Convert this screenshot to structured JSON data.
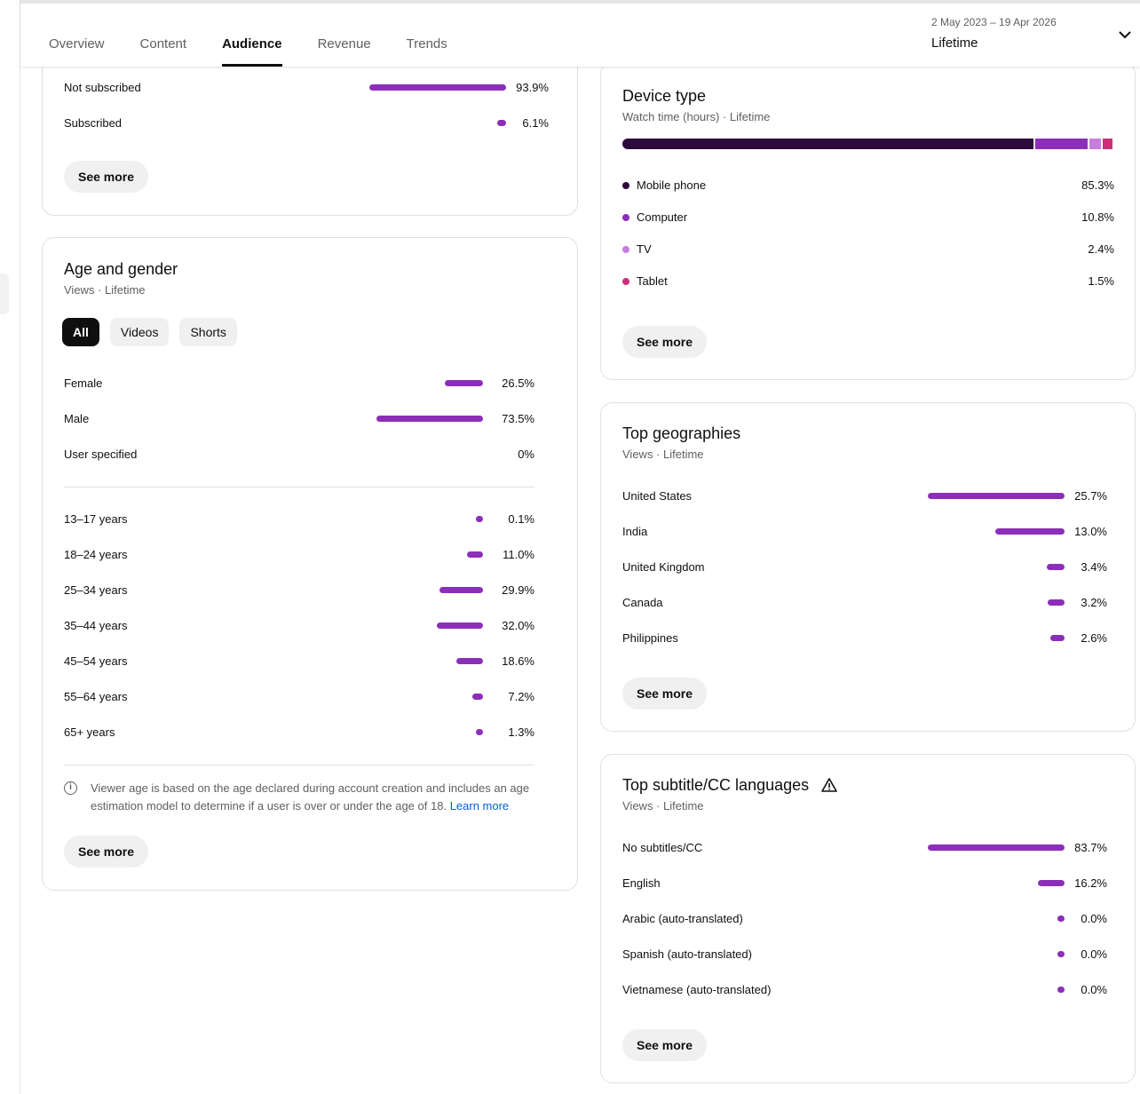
{
  "colors": {
    "bar": "#8c2fb8",
    "mobile": "#2b0a3d",
    "computer": "#8c2fb8",
    "tv": "#c77dde",
    "tablet": "#cc2f77"
  },
  "nav": {
    "tabs": [
      "Overview",
      "Content",
      "Audience",
      "Revenue",
      "Trends"
    ],
    "active_tab": "Audience",
    "date_range": "2 May 2023 – 19 Apr 2026",
    "period": "Lifetime"
  },
  "subscription": {
    "rows": [
      {
        "label": "Not subscribed",
        "value": 93.9,
        "display": "93.9%"
      },
      {
        "label": "Subscribed",
        "value": 6.1,
        "display": "6.1%"
      }
    ],
    "see_more": "See more"
  },
  "age_gender": {
    "title": "Age and gender",
    "subtitle": "Views · Lifetime",
    "chips": [
      "All",
      "Videos",
      "Shorts"
    ],
    "active_chip": "All",
    "gender": [
      {
        "label": "Female",
        "value": 26.5,
        "display": "26.5%"
      },
      {
        "label": "Male",
        "value": 73.5,
        "display": "73.5%"
      },
      {
        "label": "User specified",
        "value": 0,
        "display": "0%"
      }
    ],
    "ages": [
      {
        "label": "13–17 years",
        "value": 0.1,
        "display": "0.1%"
      },
      {
        "label": "18–24 years",
        "value": 11.0,
        "display": "11.0%"
      },
      {
        "label": "25–34 years",
        "value": 29.9,
        "display": "29.9%"
      },
      {
        "label": "35–44 years",
        "value": 32.0,
        "display": "32.0%"
      },
      {
        "label": "45–54 years",
        "value": 18.6,
        "display": "18.6%"
      },
      {
        "label": "55–64 years",
        "value": 7.2,
        "display": "7.2%"
      },
      {
        "label": "65+ years",
        "value": 1.3,
        "display": "1.3%"
      }
    ],
    "note": "Viewer age is based on the age declared during account creation and includes an age estimation model to determine if a user is over or under the age of 18.",
    "learn_more": "Learn more",
    "see_more": "See more"
  },
  "device": {
    "title": "Device type",
    "subtitle": "Watch time (hours) · Lifetime",
    "items": [
      {
        "label": "Mobile phone",
        "value": 85.3,
        "display": "85.3%",
        "color": "#2b0a3d"
      },
      {
        "label": "Computer",
        "value": 10.8,
        "display": "10.8%",
        "color": "#8c2fb8"
      },
      {
        "label": "TV",
        "value": 2.4,
        "display": "2.4%",
        "color": "#c77dde"
      },
      {
        "label": "Tablet",
        "value": 1.5,
        "display": "1.5%",
        "color": "#cc2f77"
      }
    ],
    "see_more": "See more"
  },
  "geographies": {
    "title": "Top geographies",
    "subtitle": "Views · Lifetime",
    "rows": [
      {
        "label": "United States",
        "value": 25.7,
        "display": "25.7%"
      },
      {
        "label": "India",
        "value": 13.0,
        "display": "13.0%"
      },
      {
        "label": "United Kingdom",
        "value": 3.4,
        "display": "3.4%"
      },
      {
        "label": "Canada",
        "value": 3.2,
        "display": "3.2%"
      },
      {
        "label": "Philippines",
        "value": 2.6,
        "display": "2.6%"
      }
    ],
    "see_more": "See more"
  },
  "subtitles": {
    "title": "Top subtitle/CC languages",
    "subtitle": "Views · Lifetime",
    "rows": [
      {
        "label": "No subtitles/CC",
        "value": 83.7,
        "display": "83.7%"
      },
      {
        "label": "English",
        "value": 16.2,
        "display": "16.2%"
      },
      {
        "label": "Arabic (auto-translated)",
        "value": 0.0,
        "display": "0.0%"
      },
      {
        "label": "Spanish (auto-translated)",
        "value": 0.0,
        "display": "0.0%"
      },
      {
        "label": "Vietnamese (auto-translated)",
        "value": 0.0,
        "display": "0.0%"
      }
    ],
    "see_more": "See more"
  }
}
